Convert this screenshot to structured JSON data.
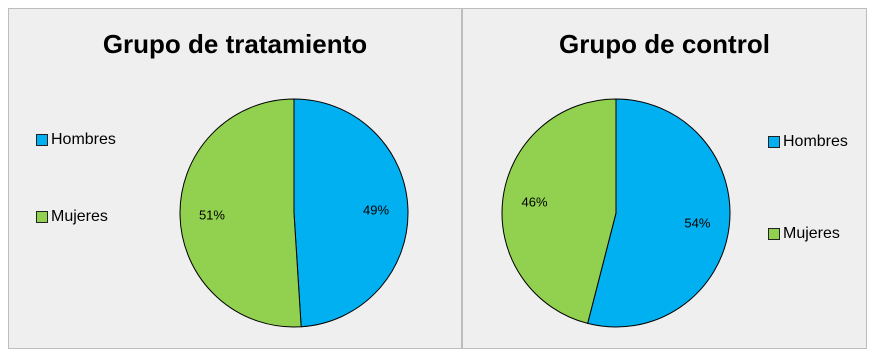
{
  "chart_data": [
    {
      "type": "pie",
      "title": "Grupo de tratamiento",
      "slices": [
        {
          "label": "Hombres",
          "value": 49,
          "value_label": "49%",
          "color": "#00b0f0"
        },
        {
          "label": "Mujeres",
          "value": 51,
          "value_label": "51%",
          "color": "#92d050"
        }
      ],
      "legend_position": "left"
    },
    {
      "type": "pie",
      "title": "Grupo de control",
      "slices": [
        {
          "label": "Hombres",
          "value": 54,
          "value_label": "54%",
          "color": "#00b0f0"
        },
        {
          "label": "Mujeres",
          "value": 46,
          "value_label": "46%",
          "color": "#92d050"
        }
      ],
      "legend_position": "right"
    }
  ]
}
